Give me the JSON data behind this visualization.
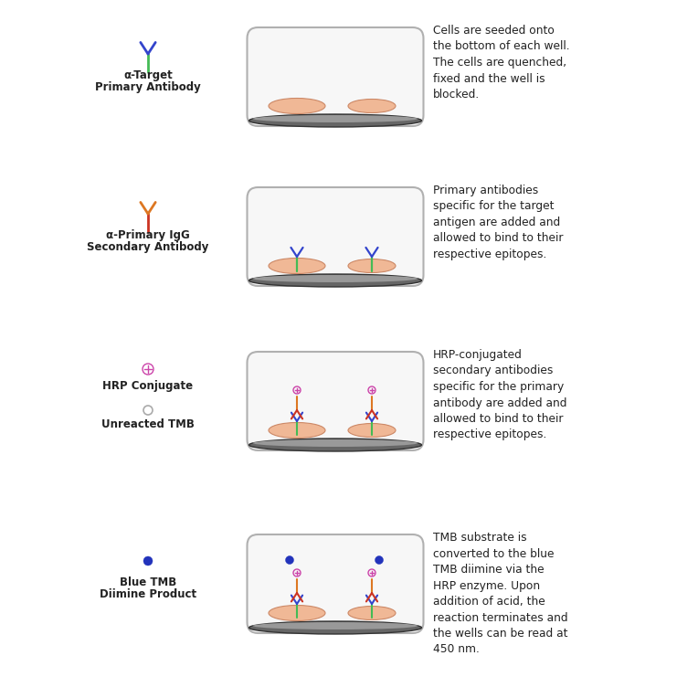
{
  "bg_color": "#ffffff",
  "cell_color": "#f0b896",
  "cell_outline": "#cc8866",
  "green": "#44bb55",
  "blue": "#3344cc",
  "red": "#cc3322",
  "orange": "#dd7722",
  "pink_hrp": "#cc44aa",
  "dark_blue_tmb": "#2233bb",
  "gray_tmb": "#aaaaaa",
  "well_face": "#f7f7f7",
  "well_border": "#b0b0b0",
  "well_bottom_dark": "#444444",
  "text_color": "#222222",
  "rows": [
    {
      "icon": "primary_ab",
      "label_lines": [
        "α-Target",
        "Primary Antibody"
      ],
      "well": "cells",
      "text": "Cells are seeded onto\nthe bottom of each well.\nThe cells are quenched,\nfixed and the well is\nblocked."
    },
    {
      "icon": "secondary_ab",
      "label_lines": [
        "α-Primary IgG",
        "Secondary Antibody"
      ],
      "well": "primary",
      "text": "Primary antibodies\nspecific for the target\nantigen are added and\nallowed to bind to their\nrespective epitopes."
    },
    {
      "icon": "hrp_and_tmb",
      "label_lines": [
        "HRP Conjugate",
        "",
        "Unreacted TMB"
      ],
      "well": "hrp",
      "text": "HRP-conjugated\nsecondary antibodies\nspecific for the primary\nantibody are added and\nallowed to bind to their\nrespective epitopes."
    },
    {
      "icon": "blue_tmb",
      "label_lines": [
        "Blue TMB",
        "Diimine Product"
      ],
      "well": "tmb",
      "text": "TMB substrate is\nconverted to the blue\nTMB diimine via the\nHRP enzyme. Upon\naddition of acid, the\nreaction terminates and\nthe wells can be read at\n450 nm."
    }
  ]
}
